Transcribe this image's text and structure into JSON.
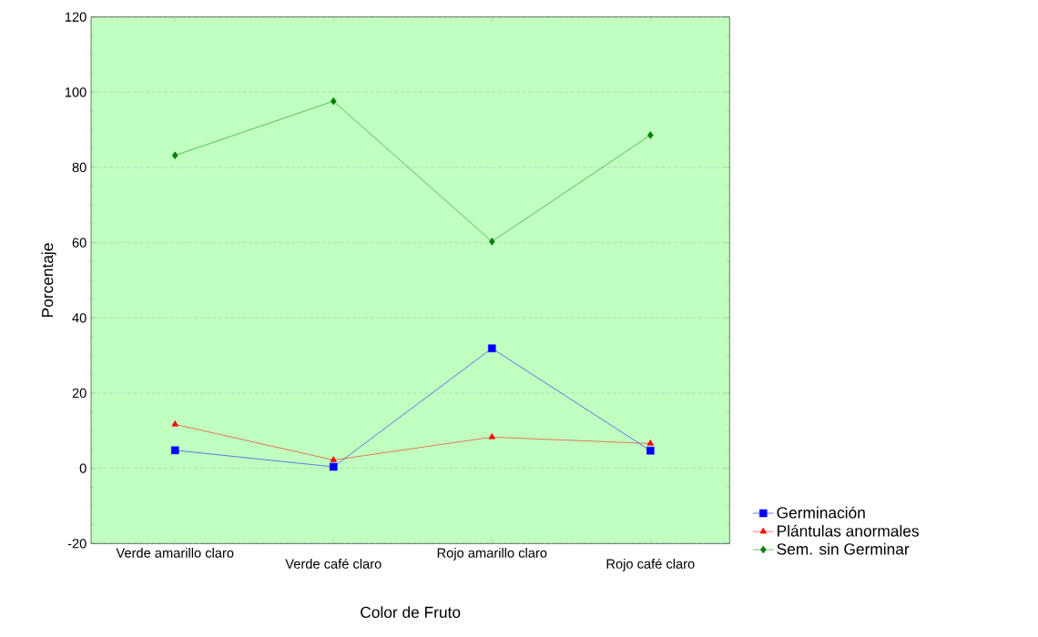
{
  "chart_data": {
    "type": "line",
    "xlabel": "Color de Fruto",
    "ylabel": "Porcentaje",
    "categories": [
      "Verde amarillo claro",
      "Verde café claro",
      "Rojo amarillo claro",
      "Rojo café claro"
    ],
    "series": [
      {
        "name": "Germinación",
        "color": "#0000ff",
        "marker": "square",
        "values": [
          4.8,
          0.4,
          31.9,
          4.7
        ]
      },
      {
        "name": "Plántulas anormales",
        "color": "#ff0000",
        "marker": "triangle",
        "values": [
          11.7,
          2.2,
          8.3,
          6.6
        ]
      },
      {
        "name": "Sem. sin Germinar",
        "color": "#008000",
        "marker": "diamond",
        "values": [
          83.2,
          97.6,
          60.3,
          88.6
        ]
      }
    ],
    "ylim": [
      -20,
      120
    ],
    "yticks": [
      -20,
      0,
      20,
      40,
      60,
      80,
      100,
      120
    ],
    "grid": "y",
    "legend": "bottom right"
  }
}
